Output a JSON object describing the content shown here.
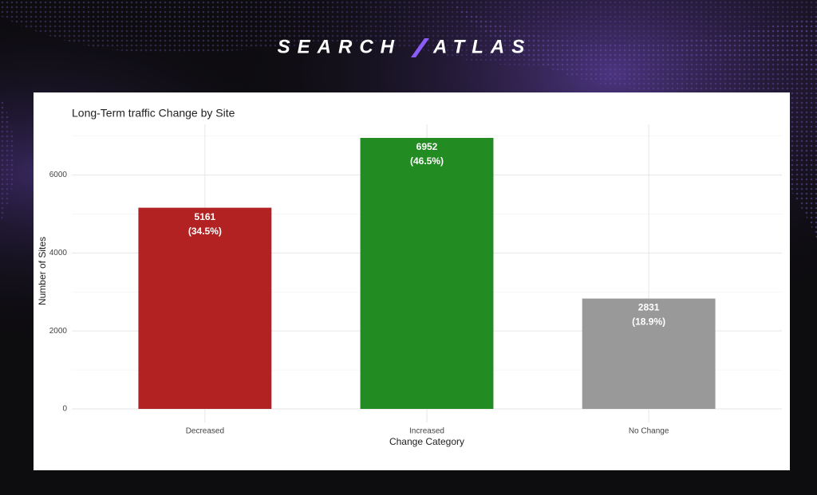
{
  "brand": [
    "SEARCH",
    "ATLAS"
  ],
  "chart_data": {
    "type": "bar",
    "title": "Long-Term traffic Change by Site",
    "xlabel": "Change Category",
    "ylabel": "Number of Sites",
    "categories": [
      "Decreased",
      "Increased",
      "No Change"
    ],
    "values": [
      5161,
      6952,
      2831
    ],
    "percent_labels": [
      "(34.5%)",
      "(46.5%)",
      "(18.9%)"
    ],
    "colors": [
      "#b22222",
      "#228b22",
      "#999999"
    ],
    "ylim": [
      -348,
      7300
    ],
    "yticks": [
      0,
      2000,
      4000,
      6000
    ],
    "minor_yticks": [
      1000,
      3000,
      5000,
      7000
    ],
    "grid": true
  }
}
